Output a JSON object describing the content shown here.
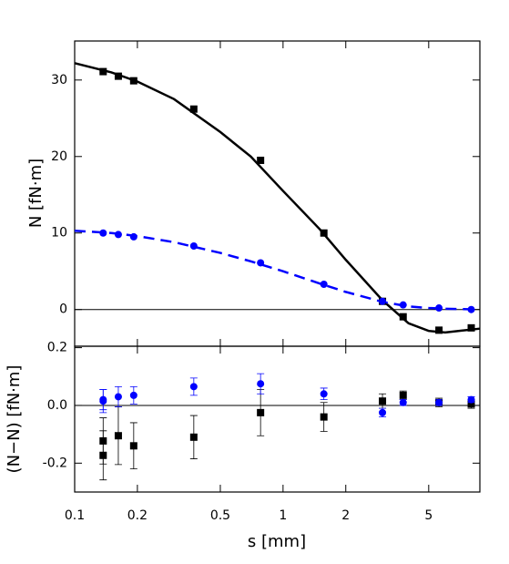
{
  "chart_data": [
    {
      "type": "line",
      "ylabel": "N [fN·m]",
      "xlim": [
        0.1,
        8.8
      ],
      "xlog": true,
      "ylim": [
        -4.8,
        35.1
      ],
      "yticks": [
        0,
        10,
        20,
        30
      ],
      "hline": 0,
      "series": [
        {
          "style": "solid",
          "color": "#000000",
          "x": [
            0.1,
            0.15,
            0.2,
            0.3,
            0.5,
            0.7,
            1,
            1.5,
            2,
            3,
            4,
            5,
            6,
            8.8
          ],
          "values": [
            32.2,
            31.0,
            29.8,
            27.5,
            23.2,
            20.0,
            15.5,
            10.5,
            6.5,
            1.2,
            -1.8,
            -2.8,
            -3.0,
            -2.5
          ]
        },
        {
          "style": "dashed",
          "color": "#0000ff",
          "x": [
            0.1,
            0.15,
            0.2,
            0.3,
            0.5,
            0.7,
            1,
            1.5,
            2,
            3,
            4,
            5,
            6,
            8.8
          ],
          "values": [
            10.3,
            10.0,
            9.6,
            8.8,
            7.4,
            6.3,
            5.0,
            3.4,
            2.3,
            1.0,
            0.4,
            0.2,
            0.1,
            0.0
          ]
        },
        {
          "style": "markers",
          "marker": "square",
          "color": "#000000",
          "x": [
            0.137,
            0.162,
            0.192,
            0.373,
            0.78,
            1.57,
            3.0,
            3.77,
            5.6,
            8.0
          ],
          "values": [
            31.1,
            30.5,
            29.9,
            26.2,
            19.5,
            10.0,
            1.07,
            -0.95,
            -2.7,
            -2.4
          ]
        },
        {
          "style": "markers",
          "marker": "circle",
          "color": "#0000ff",
          "x": [
            0.137,
            0.162,
            0.192,
            0.373,
            0.78,
            1.57,
            3.0,
            3.77,
            5.6,
            8.0
          ],
          "values": [
            10.0,
            9.8,
            9.5,
            8.3,
            6.1,
            3.3,
            1.07,
            0.6,
            0.2,
            0.0
          ]
        }
      ]
    },
    {
      "type": "scatter",
      "ylabel": "(N−N) [fN·m]",
      "xlabel": "s [mm]",
      "xlim": [
        0.1,
        8.8
      ],
      "xlog": true,
      "xticks": [
        0.1,
        0.2,
        0.5,
        1,
        2,
        5
      ],
      "ylim": [
        -0.3,
        0.205
      ],
      "yticks": [
        -0.2,
        {
          "value": 0,
          "label": "0.0"
        },
        0.2
      ],
      "hline": 0,
      "series": [
        {
          "style": "markers",
          "marker": "square",
          "color": "#000000",
          "x": [
            0.137,
            0.137,
            0.162,
            0.192,
            0.373,
            0.78,
            1.57,
            3.0,
            3.77,
            5.6,
            8.0
          ],
          "values": [
            -0.123,
            -0.173,
            -0.105,
            -0.14,
            -0.11,
            -0.025,
            -0.04,
            0.015,
            0.035,
            0.01,
            0.005
          ],
          "errors": [
            0.08,
            0.085,
            0.1,
            0.08,
            0.075,
            0.08,
            0.05,
            0.025,
            0.015,
            0.015,
            0.015
          ]
        },
        {
          "style": "markers",
          "marker": "circle",
          "color": "#0000ff",
          "x": [
            0.137,
            0.137,
            0.162,
            0.192,
            0.373,
            0.78,
            1.57,
            3.0,
            3.77,
            5.6,
            8.0
          ],
          "values": [
            0.015,
            0.02,
            0.03,
            0.035,
            0.065,
            0.075,
            0.04,
            -0.025,
            0.01,
            0.01,
            0.02
          ],
          "errors": [
            0.04,
            0.035,
            0.035,
            0.03,
            0.03,
            0.035,
            0.02,
            0.015,
            0.01,
            0.01,
            0.01
          ]
        }
      ]
    }
  ]
}
